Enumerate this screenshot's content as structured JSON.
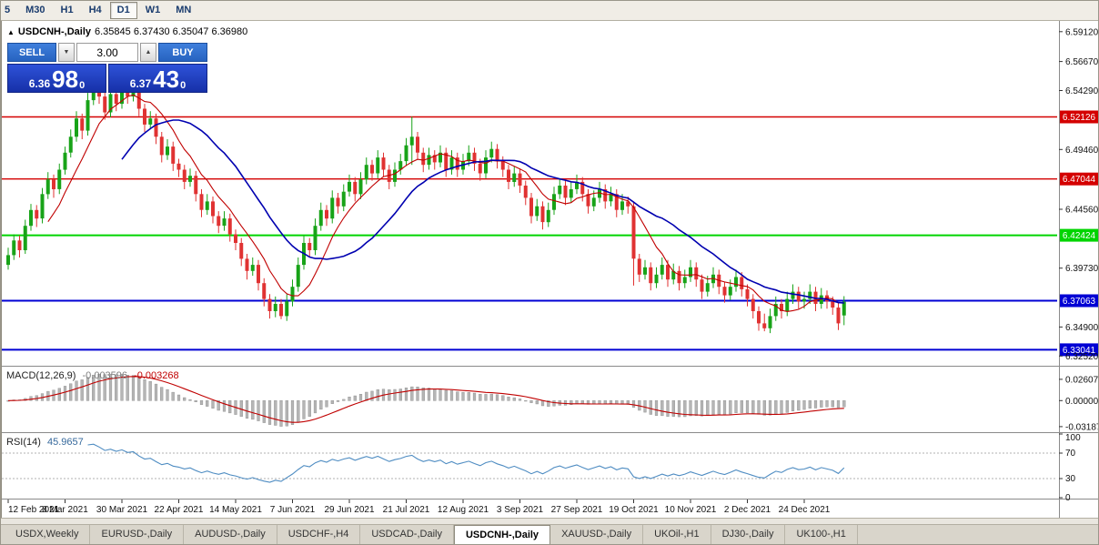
{
  "toolbar": {
    "timeframes": [
      {
        "label": "5",
        "active": false
      },
      {
        "label": "M30",
        "active": false
      },
      {
        "label": "H1",
        "active": false
      },
      {
        "label": "H4",
        "active": false
      },
      {
        "label": "D1",
        "active": true
      },
      {
        "label": "W1",
        "active": false
      },
      {
        "label": "MN",
        "active": false
      }
    ]
  },
  "chart": {
    "title": "USDCNH-,Daily",
    "ohlc": "6.35845 6.37430 6.35047 6.36980"
  },
  "icons": {
    "symbol_marker": "▲",
    "spin_down": "▼",
    "spin_up": "▲"
  },
  "trade_panel": {
    "sell_label": "SELL",
    "buy_label": "BUY",
    "volume": "3.00",
    "sell_price": {
      "prefix": "6.36",
      "big": "98",
      "sup": "0"
    },
    "buy_price": {
      "prefix": "6.37",
      "big": "43",
      "sup": "0"
    }
  },
  "chart_data": {
    "type": "candlestick",
    "symbol": "USDCNH-",
    "timeframe": "Daily",
    "price_range": [
      6.318,
      6.6
    ],
    "colors": {
      "up": "#18a318",
      "down": "#e03232",
      "ma_fast": "#c00000",
      "ma_slow": "#0000b0",
      "macd_hist": "#b5b5b5",
      "macd_hist_stroke": "#8a8a8a",
      "macd_signal": "#c00000",
      "rsi": "#4e8cc2"
    },
    "levels": [
      {
        "label": "6.52126",
        "value": 6.52126,
        "color": "#d40000",
        "width": 1.4
      },
      {
        "label": "6.47044",
        "value": 6.47044,
        "color": "#d40000",
        "width": 1.4
      },
      {
        "label": "6.42424",
        "value": 6.42424,
        "color": "#00d400",
        "width": 2
      },
      {
        "label": "6.37063",
        "value": 6.37063,
        "color": "#0000d4",
        "width": 2
      },
      {
        "label": "6.33041",
        "value": 6.33041,
        "color": "#0000d4",
        "width": 2
      }
    ],
    "y_ticks": [
      {
        "label": "6.59120",
        "value": 6.5912
      },
      {
        "label": "6.56670",
        "value": 6.5667
      },
      {
        "label": "6.54290",
        "value": 6.5429
      },
      {
        "label": "6.49460",
        "value": 6.4946
      },
      {
        "label": "6.44560",
        "value": 6.4456
      },
      {
        "label": "6.39730",
        "value": 6.3973
      },
      {
        "label": "6.34900",
        "value": 6.349
      },
      {
        "label": "6.32520",
        "value": 6.3252
      }
    ],
    "date_labels": [
      "12 Feb 2021",
      "8 Mar 2021",
      "30 Mar 2021",
      "22 Apr 2021",
      "14 May 2021",
      "7 Jun 2021",
      "29 Jun 2021",
      "21 Jul 2021",
      "12 Aug 2021",
      "3 Sep 2021",
      "27 Sep 2021",
      "19 Oct 2021",
      "10 Nov 2021",
      "2 Dec 2021",
      "24 Dec 2021"
    ],
    "indicators": {
      "ma_fast_period": 8,
      "ma_slow_period": 21,
      "macd": {
        "label": "MACD(12,26,9)",
        "value_main": "-0.003596",
        "value_signal": "-0.003268",
        "ticks": [
          "0.02607",
          "0.00000",
          "-0.03187"
        ]
      },
      "rsi": {
        "label": "RSI(14)",
        "value": "45.9657",
        "ticks": [
          "100",
          "70",
          "30",
          "0"
        ],
        "levels": [
          70,
          30
        ]
      }
    },
    "candles": [
      [
        6.4,
        6.414,
        6.396,
        6.408
      ],
      [
        6.408,
        6.425,
        6.404,
        6.42
      ],
      [
        6.42,
        6.424,
        6.406,
        6.412
      ],
      [
        6.412,
        6.437,
        6.409,
        6.432
      ],
      [
        6.432,
        6.45,
        6.428,
        6.445
      ],
      [
        6.445,
        6.449,
        6.431,
        6.438
      ],
      [
        6.438,
        6.463,
        6.434,
        6.458
      ],
      [
        6.458,
        6.476,
        6.454,
        6.47
      ],
      [
        6.47,
        6.474,
        6.455,
        6.462
      ],
      [
        6.462,
        6.483,
        6.458,
        6.478
      ],
      [
        6.478,
        6.497,
        6.474,
        6.492
      ],
      [
        6.492,
        6.511,
        6.488,
        6.505
      ],
      [
        6.505,
        6.526,
        6.501,
        6.52
      ],
      [
        6.52,
        6.524,
        6.503,
        6.51
      ],
      [
        6.51,
        6.541,
        6.506,
        6.535
      ],
      [
        6.535,
        6.553,
        6.531,
        6.548
      ],
      [
        6.548,
        6.552,
        6.532,
        6.538
      ],
      [
        6.538,
        6.542,
        6.519,
        6.525
      ],
      [
        6.525,
        6.546,
        6.521,
        6.54
      ],
      [
        6.54,
        6.544,
        6.526,
        6.532
      ],
      [
        6.532,
        6.552,
        6.528,
        6.548
      ],
      [
        6.548,
        6.552,
        6.532,
        6.538
      ],
      [
        6.538,
        6.55,
        6.534,
        6.545
      ],
      [
        6.545,
        6.549,
        6.522,
        6.528
      ],
      [
        6.528,
        6.532,
        6.509,
        6.515
      ],
      [
        6.515,
        6.526,
        6.511,
        6.52
      ],
      [
        6.52,
        6.524,
        6.499,
        6.505
      ],
      [
        6.505,
        6.509,
        6.484,
        6.49
      ],
      [
        6.49,
        6.503,
        6.486,
        6.497
      ],
      [
        6.497,
        6.501,
        6.477,
        6.483
      ],
      [
        6.483,
        6.487,
        6.472,
        6.478
      ],
      [
        6.478,
        6.482,
        6.462,
        6.468
      ],
      [
        6.468,
        6.479,
        6.464,
        6.473
      ],
      [
        6.473,
        6.477,
        6.452,
        6.458
      ],
      [
        6.458,
        6.462,
        6.439,
        6.445
      ],
      [
        6.445,
        6.458,
        6.441,
        6.452
      ],
      [
        6.452,
        6.456,
        6.434,
        6.44
      ],
      [
        6.44,
        6.444,
        6.426,
        6.432
      ],
      [
        6.432,
        6.444,
        6.428,
        6.438
      ],
      [
        6.438,
        6.442,
        6.419,
        6.425
      ],
      [
        6.425,
        6.429,
        6.412,
        6.418
      ],
      [
        6.418,
        6.422,
        6.399,
        6.405
      ],
      [
        6.405,
        6.409,
        6.388,
        6.395
      ],
      [
        6.395,
        6.406,
        6.391,
        6.4
      ],
      [
        6.4,
        6.404,
        6.379,
        6.385
      ],
      [
        6.385,
        6.389,
        6.366,
        6.372
      ],
      [
        6.372,
        6.376,
        6.356,
        6.362
      ],
      [
        6.362,
        6.374,
        6.357,
        6.368
      ],
      [
        6.368,
        6.372,
        6.3555,
        6.358
      ],
      [
        6.358,
        6.376,
        6.354,
        6.37
      ],
      [
        6.37,
        6.388,
        6.366,
        6.382
      ],
      [
        6.382,
        6.406,
        6.378,
        6.4
      ],
      [
        6.4,
        6.424,
        6.396,
        6.418
      ],
      [
        6.418,
        6.422,
        6.406,
        6.412
      ],
      [
        6.412,
        6.438,
        6.408,
        6.432
      ],
      [
        6.432,
        6.451,
        6.428,
        6.445
      ],
      [
        6.445,
        6.449,
        6.432,
        6.438
      ],
      [
        6.438,
        6.461,
        6.434,
        6.455
      ],
      [
        6.455,
        6.459,
        6.442,
        6.448
      ],
      [
        6.448,
        6.466,
        6.444,
        6.46
      ],
      [
        6.46,
        6.474,
        6.456,
        6.468
      ],
      [
        6.468,
        6.472,
        6.452,
        6.458
      ],
      [
        6.458,
        6.476,
        6.454,
        6.47
      ],
      [
        6.47,
        6.488,
        6.466,
        6.482
      ],
      [
        6.482,
        6.486,
        6.469,
        6.475
      ],
      [
        6.475,
        6.494,
        6.471,
        6.488
      ],
      [
        6.488,
        6.492,
        6.472,
        6.478
      ],
      [
        6.478,
        6.482,
        6.462,
        6.468
      ],
      [
        6.468,
        6.484,
        6.464,
        6.478
      ],
      [
        6.478,
        6.491,
        6.474,
        6.485
      ],
      [
        6.485,
        6.504,
        6.481,
        6.498
      ],
      [
        6.498,
        6.5215,
        6.482,
        6.505
      ],
      [
        6.505,
        6.509,
        6.486,
        6.492
      ],
      [
        6.492,
        6.496,
        6.476,
        6.482
      ],
      [
        6.482,
        6.496,
        6.478,
        6.49
      ],
      [
        6.49,
        6.494,
        6.478,
        6.484
      ],
      [
        6.484,
        6.498,
        6.48,
        6.492
      ],
      [
        6.492,
        6.496,
        6.472,
        6.478
      ],
      [
        6.478,
        6.494,
        6.474,
        6.488
      ],
      [
        6.488,
        6.492,
        6.472,
        6.478
      ],
      [
        6.478,
        6.491,
        6.474,
        6.485
      ],
      [
        6.485,
        6.498,
        6.481,
        6.492
      ],
      [
        6.492,
        6.496,
        6.477,
        6.483
      ],
      [
        6.483,
        6.487,
        6.469,
        6.475
      ],
      [
        6.475,
        6.494,
        6.471,
        6.488
      ],
      [
        6.488,
        6.501,
        6.484,
        6.495
      ],
      [
        6.495,
        6.499,
        6.479,
        6.485
      ],
      [
        6.485,
        6.489,
        6.472,
        6.478
      ],
      [
        6.478,
        6.482,
        6.462,
        6.468
      ],
      [
        6.468,
        6.481,
        6.464,
        6.475
      ],
      [
        6.475,
        6.479,
        6.459,
        6.465
      ],
      [
        6.465,
        6.469,
        6.449,
        6.455
      ],
      [
        6.455,
        6.459,
        6.434,
        6.44
      ],
      [
        6.44,
        6.454,
        6.436,
        6.448
      ],
      [
        6.448,
        6.452,
        6.429,
        6.435
      ],
      [
        6.435,
        6.451,
        6.431,
        6.445
      ],
      [
        6.445,
        6.464,
        6.441,
        6.458
      ],
      [
        6.458,
        6.471,
        6.454,
        6.465
      ],
      [
        6.465,
        6.469,
        6.449,
        6.455
      ],
      [
        6.455,
        6.468,
        6.451,
        6.462
      ],
      [
        6.462,
        6.474,
        6.458,
        6.468
      ],
      [
        6.468,
        6.472,
        6.452,
        6.458
      ],
      [
        6.458,
        6.462,
        6.442,
        6.448
      ],
      [
        6.448,
        6.461,
        6.444,
        6.455
      ],
      [
        6.455,
        6.468,
        6.451,
        6.462
      ],
      [
        6.462,
        6.466,
        6.446,
        6.452
      ],
      [
        6.452,
        6.464,
        6.448,
        6.458
      ],
      [
        6.458,
        6.462,
        6.439,
        6.445
      ],
      [
        6.445,
        6.458,
        6.441,
        6.452
      ],
      [
        6.452,
        6.456,
        6.442,
        6.448
      ],
      [
        6.448,
        6.452,
        6.383,
        6.405
      ],
      [
        6.405,
        6.409,
        6.386,
        6.392
      ],
      [
        6.392,
        6.404,
        6.388,
        6.398
      ],
      [
        6.398,
        6.402,
        6.379,
        6.385
      ],
      [
        6.385,
        6.398,
        6.381,
        6.392
      ],
      [
        6.392,
        6.406,
        6.388,
        6.4
      ],
      [
        6.4,
        6.404,
        6.382,
        6.388
      ],
      [
        6.388,
        6.401,
        6.384,
        6.395
      ],
      [
        6.395,
        6.399,
        6.379,
        6.385
      ],
      [
        6.385,
        6.396,
        6.381,
        6.39
      ],
      [
        6.39,
        6.404,
        6.386,
        6.398
      ],
      [
        6.398,
        6.402,
        6.382,
        6.388
      ],
      [
        6.388,
        6.392,
        6.372,
        6.378
      ],
      [
        6.378,
        6.391,
        6.374,
        6.385
      ],
      [
        6.385,
        6.398,
        6.381,
        6.392
      ],
      [
        6.392,
        6.396,
        6.376,
        6.382
      ],
      [
        6.382,
        6.386,
        6.369,
        6.375
      ],
      [
        6.375,
        6.388,
        6.371,
        6.382
      ],
      [
        6.382,
        6.396,
        6.378,
        6.39
      ],
      [
        6.39,
        6.394,
        6.374,
        6.38
      ],
      [
        6.38,
        6.384,
        6.366,
        6.372
      ],
      [
        6.372,
        6.376,
        6.356,
        6.362
      ],
      [
        6.362,
        6.366,
        6.346,
        6.352
      ],
      [
        6.352,
        6.36,
        6.3455,
        6.348
      ],
      [
        6.348,
        6.364,
        6.344,
        6.358
      ],
      [
        6.358,
        6.374,
        6.354,
        6.368
      ],
      [
        6.368,
        6.372,
        6.356,
        6.362
      ],
      [
        6.362,
        6.378,
        6.358,
        6.372
      ],
      [
        6.372,
        6.384,
        6.368,
        6.378
      ],
      [
        6.378,
        6.382,
        6.364,
        6.37
      ],
      [
        6.37,
        6.378,
        6.364,
        6.372
      ],
      [
        6.372,
        6.384,
        6.368,
        6.378
      ],
      [
        6.378,
        6.382,
        6.362,
        6.368
      ],
      [
        6.368,
        6.381,
        6.364,
        6.375
      ],
      [
        6.375,
        6.379,
        6.364,
        6.37
      ],
      [
        6.37,
        6.374,
        6.359,
        6.365
      ],
      [
        6.365,
        6.369,
        6.3465,
        6.352
      ],
      [
        6.3585,
        6.3743,
        6.3505,
        6.3698
      ]
    ]
  },
  "tabs": [
    {
      "label": "USDX,Weekly",
      "active": false
    },
    {
      "label": "EURUSD-,Daily",
      "active": false
    },
    {
      "label": "AUDUSD-,Daily",
      "active": false
    },
    {
      "label": "USDCHF-,H4",
      "active": false
    },
    {
      "label": "USDCAD-,Daily",
      "active": false
    },
    {
      "label": "USDCNH-,Daily",
      "active": true
    },
    {
      "label": "XAUUSD-,Daily",
      "active": false
    },
    {
      "label": "UKOil-,H1",
      "active": false
    },
    {
      "label": "DJ30-,Daily",
      "active": false
    },
    {
      "label": "UK100-,H1",
      "active": false
    }
  ]
}
